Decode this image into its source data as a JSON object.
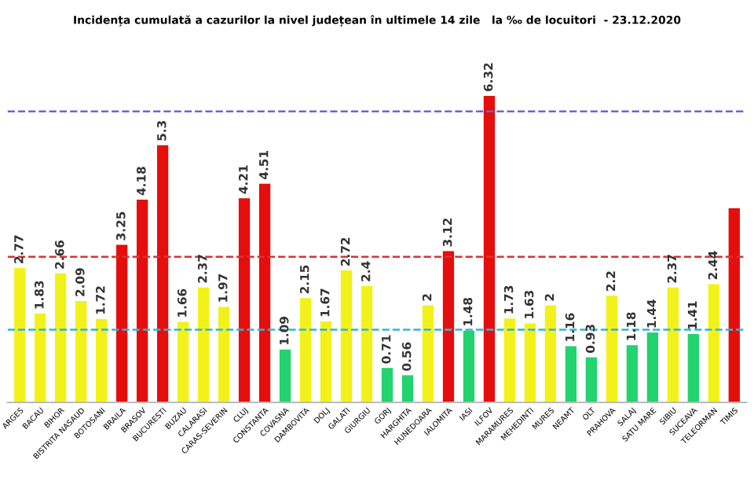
{
  "chart_data": {
    "type": "bar",
    "title": "Incidența cumulată a cazurilor la nivel județean în ultimele 14 zile   la ‰ de locuitori  - 23.12.2020",
    "categories": [
      "ARGES",
      "BACAU",
      "BIHOR",
      "BISTRITA NASAUD",
      "BOTOSANI",
      "BRAILA",
      "BRASOV",
      "BUCURESTI",
      "BUZAU",
      "CALARASI",
      "CARAS-SEVERIN",
      "CLUJ",
      "CONSTANTA",
      "COVASNA",
      "DAMBOVITA",
      "DOLJ",
      "GALATI",
      "GIURGIU",
      "GORJ",
      "HARGHITA",
      "HUNEDOARA",
      "IALOMITA",
      "IASI",
      "ILFOV",
      "MARAMURES",
      "MEHEDINTI",
      "MURES",
      "NEAMT",
      "OLT",
      "PRAHOVA",
      "SALAJ",
      "SATU MARE",
      "SIBIU",
      "SUCEAVA",
      "TELEORMAN",
      "TIMIS"
    ],
    "values": [
      2.77,
      1.83,
      2.66,
      2.09,
      1.72,
      3.25,
      4.18,
      5.3,
      1.66,
      2.37,
      1.97,
      4.21,
      4.51,
      1.09,
      2.15,
      1.67,
      2.72,
      2.4,
      0.71,
      0.56,
      2,
      3.12,
      1.48,
      6.32,
      1.73,
      1.63,
      2,
      1.16,
      0.93,
      2.2,
      1.18,
      1.44,
      2.37,
      1.41,
      2.44,
      4.0
    ],
    "value_labels": [
      "2.77",
      "1.83",
      "2.66",
      "2.09",
      "1.72",
      "3.25",
      "4.18",
      "5.3",
      "1.66",
      "2.37",
      "1.97",
      "4.21",
      "4.51",
      "1.09",
      "2.15",
      "1.67",
      "2.72",
      "2.4",
      "0.71",
      "0.56",
      "2",
      "3.12",
      "1.48",
      "6.32",
      "1.73",
      "1.63",
      "2",
      "1.16",
      "0.93",
      "2.2",
      "1.18",
      "1.44",
      "2.37",
      "1.41",
      "2.44",
      null
    ],
    "colors": [
      "#f2f21a",
      "#f2f21a",
      "#f2f21a",
      "#f2f21a",
      "#f2f21a",
      "#e60d0d",
      "#e60d0d",
      "#e60d0d",
      "#f2f21a",
      "#f2f21a",
      "#f2f21a",
      "#e60d0d",
      "#e60d0d",
      "#22d36e",
      "#f2f21a",
      "#f2f21a",
      "#f2f21a",
      "#f2f21a",
      "#22d36e",
      "#22d36e",
      "#f2f21a",
      "#e60d0d",
      "#22d36e",
      "#e60d0d",
      "#f2f21a",
      "#f2f21a",
      "#f2f21a",
      "#22d36e",
      "#22d36e",
      "#f2f21a",
      "#22d36e",
      "#22d36e",
      "#f2f21a",
      "#22d36e",
      "#f2f21a",
      "#e60d0d"
    ],
    "tick_labels": "x",
    "grid": false,
    "ref_lines": [
      {
        "axis": "y",
        "value": 1.5,
        "color": "#33b5d6",
        "line_style": "dashed"
      },
      {
        "axis": "y",
        "value": 3,
        "color": "#d93333",
        "line_style": "dashed"
      },
      {
        "axis": "y",
        "value": 6,
        "color": "#7a5cd6",
        "line_style": "dashed"
      }
    ]
  }
}
